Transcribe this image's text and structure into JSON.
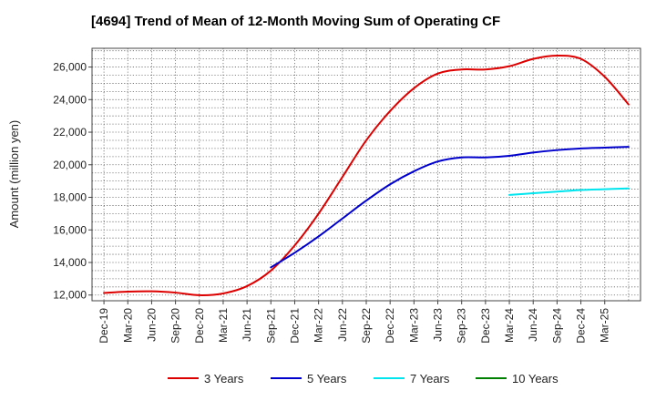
{
  "chart_data": {
    "type": "line",
    "title": "[4694]  Trend of Mean of 12-Month Moving Sum of Operating CF",
    "xlabel": "",
    "ylabel": "Amount (million yen)",
    "ylim": [
      11650,
      27150
    ],
    "yticks": [
      12000,
      14000,
      16000,
      18000,
      20000,
      22000,
      24000,
      26000
    ],
    "ytick_labels": [
      "12,000",
      "14,000",
      "16,000",
      "18,000",
      "20,000",
      "22,000",
      "24,000",
      "26,000"
    ],
    "xtick_labels": [
      "Dec-19",
      "Mar-20",
      "Jun-20",
      "Sep-20",
      "Dec-20",
      "Mar-21",
      "Jun-21",
      "Sep-21",
      "Dec-21",
      "Mar-22",
      "Jun-22",
      "Sep-22",
      "Dec-22",
      "Mar-23",
      "Jun-23",
      "Sep-23",
      "Dec-23",
      "Mar-24",
      "Jun-24",
      "Sep-24",
      "Dec-24",
      "Mar-25"
    ],
    "x_count": 23,
    "grid": true,
    "legend_position": "bottom",
    "series": [
      {
        "name": "3 Years",
        "color": "#dd0000",
        "x_start": 0,
        "values": [
          12130,
          12210,
          12230,
          12150,
          11990,
          12100,
          12550,
          13500,
          15050,
          17000,
          19250,
          21500,
          23300,
          24700,
          25600,
          25850,
          25850,
          26050,
          26500,
          26700,
          26500,
          25400,
          23700
        ]
      },
      {
        "name": "5 Years",
        "color": "#0000cc",
        "x_start": 7,
        "values": [
          13700,
          14600,
          15600,
          16700,
          17800,
          18800,
          19600,
          20200,
          20450,
          20450,
          20550,
          20750,
          20900,
          21000,
          21050,
          21100
        ]
      },
      {
        "name": "7 Years",
        "color": "#00e5ee",
        "x_start": 17,
        "values": [
          18150,
          18250,
          18350,
          18450,
          18500,
          18550
        ]
      },
      {
        "name": "10 Years",
        "color": "#008000",
        "x_start": 0,
        "values": []
      }
    ]
  }
}
